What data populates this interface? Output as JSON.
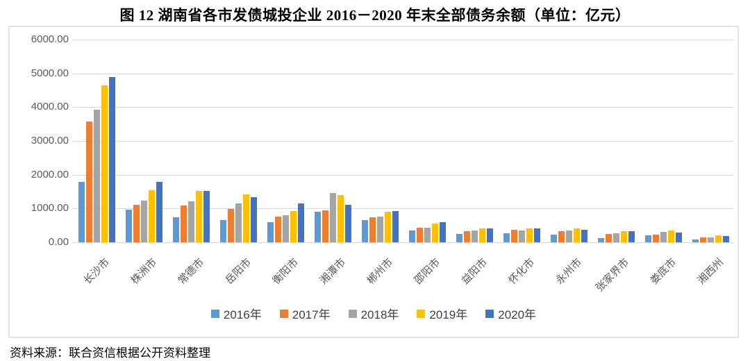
{
  "title": "图 12  湖南省各市发债城投企业 2016－2020 年末全部债务余额（单位：亿元）",
  "source_note": "资料来源：联合资信根据公开资料整理",
  "chart_data": {
    "type": "bar",
    "title": "图 12  湖南省各市发债城投企业 2016－2020 年末全部债务余额（单位：亿元）",
    "unit": "亿元",
    "categories": [
      "长沙市",
      "株洲市",
      "常德市",
      "岳阳市",
      "衡阳市",
      "湘潭市",
      "郴州市",
      "邵阳市",
      "益阳市",
      "怀化市",
      "永州市",
      "张家界市",
      "娄底市",
      "湘西州"
    ],
    "series": [
      {
        "name": "2016年",
        "color": "#5B9BD5",
        "values": [
          1780,
          960,
          740,
          650,
          590,
          900,
          660,
          350,
          250,
          260,
          220,
          130,
          200,
          80
        ]
      },
      {
        "name": "2017年",
        "color": "#ED7D31",
        "values": [
          3580,
          1110,
          1080,
          990,
          760,
          950,
          730,
          430,
          330,
          370,
          330,
          250,
          220,
          140
        ]
      },
      {
        "name": "2018年",
        "color": "#A5A5A5",
        "values": [
          3930,
          1240,
          1220,
          1160,
          800,
          1450,
          770,
          440,
          340,
          350,
          350,
          260,
          300,
          150
        ]
      },
      {
        "name": "2019年",
        "color": "#FFC000",
        "values": [
          4650,
          1540,
          1520,
          1420,
          920,
          1390,
          900,
          560,
          410,
          420,
          420,
          320,
          340,
          200
        ]
      },
      {
        "name": "2020年",
        "color": "#4472C4",
        "values": [
          4900,
          1780,
          1530,
          1330,
          1150,
          1110,
          920,
          590,
          420,
          410,
          370,
          330,
          290,
          190
        ]
      }
    ],
    "ylim": [
      0,
      6000
    ],
    "ytick_step": 1000,
    "ytick_labels": [
      "0.00",
      "1000.00",
      "2000.00",
      "3000.00",
      "4000.00",
      "5000.00",
      "6000.00"
    ],
    "grid": true,
    "gridline_color": "#d9d9d9",
    "legend_position": "bottom"
  }
}
